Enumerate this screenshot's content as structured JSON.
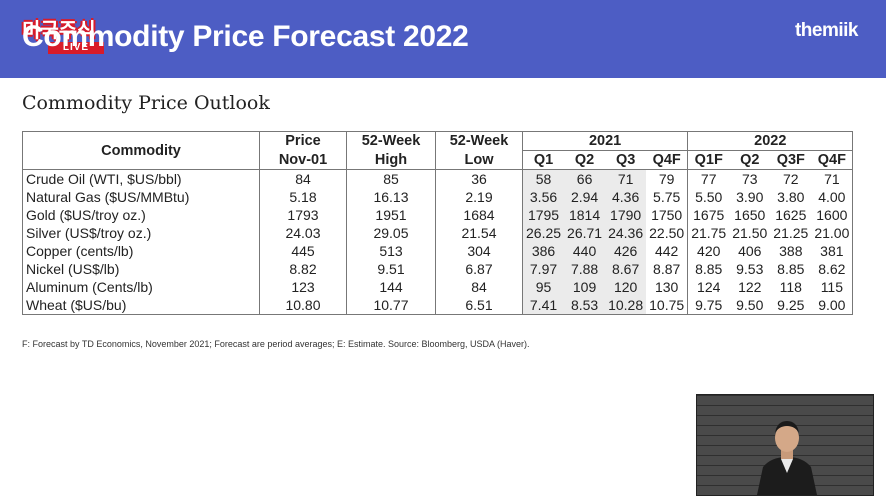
{
  "header": {
    "title": "Commodity Price Forecast 2022",
    "brand": "themiik",
    "logo_text": "미국주식",
    "logo_live": "LIVE"
  },
  "subtitle": "Commodity Price Outlook",
  "table": {
    "headers": {
      "commodity": "Commodity",
      "price_top": "Price",
      "price_bottom": "Nov-01",
      "high_top": "52-Week",
      "high_bottom": "High",
      "low_top": "52-Week",
      "low_bottom": "Low",
      "year_2021": "2021",
      "year_2022": "2022",
      "q_2021": [
        "Q1",
        "Q2",
        "Q3",
        "Q4F"
      ],
      "q_2022": [
        "Q1F",
        "Q2",
        "Q3F",
        "Q4F"
      ]
    },
    "rows": [
      {
        "name": "Crude Oil (WTI, $US/bbl)",
        "price": "84",
        "high": "85",
        "low": "36",
        "y2021": [
          "58",
          "66",
          "71",
          "79"
        ],
        "y2022": [
          "77",
          "73",
          "72",
          "71"
        ]
      },
      {
        "name": "Natural Gas ($US/MMBtu)",
        "price": "5.18",
        "high": "16.13",
        "low": "2.19",
        "y2021": [
          "3.56",
          "2.94",
          "4.36",
          "5.75"
        ],
        "y2022": [
          "5.50",
          "3.90",
          "3.80",
          "4.00"
        ]
      },
      {
        "name": "Gold ($US/troy oz.)",
        "price": "1793",
        "high": "1951",
        "low": "1684",
        "y2021": [
          "1795",
          "1814",
          "1790",
          "1750"
        ],
        "y2022": [
          "1675",
          "1650",
          "1625",
          "1600"
        ]
      },
      {
        "name": "Silver (US$/troy oz.)",
        "price": "24.03",
        "high": "29.05",
        "low": "21.54",
        "y2021": [
          "26.25",
          "26.71",
          "24.36",
          "22.50"
        ],
        "y2022": [
          "21.75",
          "21.50",
          "21.25",
          "21.00"
        ]
      },
      {
        "name": "Copper (cents/lb)",
        "price": "445",
        "high": "513",
        "low": "304",
        "y2021": [
          "386",
          "440",
          "426",
          "442"
        ],
        "y2022": [
          "420",
          "406",
          "388",
          "381"
        ]
      },
      {
        "name": "Nickel (US$/lb)",
        "price": "8.82",
        "high": "9.51",
        "low": "6.87",
        "y2021": [
          "7.97",
          "7.88",
          "8.67",
          "8.87"
        ],
        "y2022": [
          "8.85",
          "9.53",
          "8.85",
          "8.62"
        ]
      },
      {
        "name": "Aluminum (Cents/lb)",
        "price": "123",
        "high": "144",
        "low": "84",
        "y2021": [
          "95",
          "109",
          "120",
          "130"
        ],
        "y2022": [
          "124",
          "122",
          "118",
          "115"
        ]
      },
      {
        "name": "Wheat ($US/bu)",
        "price": "10.80",
        "high": "10.77",
        "low": "6.51",
        "y2021": [
          "7.41",
          "8.53",
          "10.28",
          "10.75"
        ],
        "y2022": [
          "9.75",
          "9.50",
          "9.25",
          "9.00"
        ]
      }
    ]
  },
  "footnote": "F: Forecast by TD Economics, November 2021; Forecast are period averages; E: Estimate. Source: Bloomberg, USDA (Haver)."
}
